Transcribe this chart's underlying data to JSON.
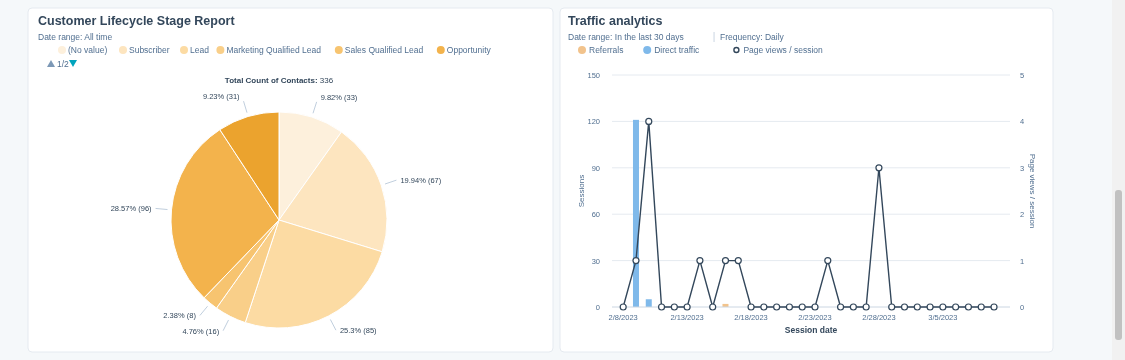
{
  "chart_data": [
    {
      "type": "pie",
      "title": "Customer Lifecycle Stage Report",
      "subtitle": "Date range: All time",
      "annotations": [
        "Total Count of Contacts: 336",
        "1/2"
      ],
      "legend": "top",
      "categories": [
        "(No value)",
        "Subscriber",
        "Lead",
        "Marketing Qualified Lead",
        "Sales Qualified Lead",
        "Opportunity",
        null
      ],
      "values": [
        33,
        67,
        85,
        16,
        8,
        96,
        31
      ],
      "value_labels": [
        "9.82% (33)",
        "19.94% (67)",
        "25.3% (85)",
        "4.76% (16)",
        "2.38% (8)",
        "28.57% (96)",
        "9.23% (31)"
      ],
      "colors": [
        "#fdf0dc",
        "#fde5bf",
        "#fcdba3",
        "#f9cf89",
        "#f7c470",
        "#f3b34c",
        "#eba32e"
      ]
    },
    {
      "type": "bar",
      "title": "Traffic analytics",
      "subtitle": "Date range: In the last 30 days",
      "annotations": [
        "Frequency: Daily"
      ],
      "legend": "top left",
      "stacked": true,
      "grid": "y",
      "marker": "circle",
      "line_style": "solid",
      "xlabel": "Session date",
      "ylabel": "Sessions",
      "y2label": "Page views / session",
      "x": [
        "2023-02-08",
        "2023-02-09",
        "2023-02-10",
        "2023-02-11",
        "2023-02-12",
        "2023-02-13",
        "2023-02-14",
        "2023-02-15",
        "2023-02-16",
        "2023-02-17",
        "2023-02-18",
        "2023-02-19",
        "2023-02-20",
        "2023-02-21",
        "2023-02-22",
        "2023-02-23",
        "2023-02-24",
        "2023-02-25",
        "2023-02-26",
        "2023-02-27",
        "2023-02-28",
        "2023-03-01",
        "2023-03-02",
        "2023-03-03",
        "2023-03-04",
        "2023-03-05",
        "2023-03-06",
        "2023-03-07",
        "2023-03-08",
        "2023-03-09"
      ],
      "xlim": [
        "2023-02-07T03:00",
        "2023-03-10T06:00"
      ],
      "xticks": [
        {
          "value": "2023-02-08",
          "label": "2/8/2023"
        },
        {
          "value": "2023-02-13",
          "label": "2/13/2023"
        },
        {
          "value": "2023-02-18",
          "label": "2/18/2023"
        },
        {
          "value": "2023-02-23",
          "label": "2/23/2023"
        },
        {
          "value": "2023-02-28",
          "label": "2/28/2023"
        },
        {
          "value": "2023-03-05",
          "label": "3/5/2023"
        }
      ],
      "ylim": [
        0,
        150
      ],
      "yticks": [
        0,
        30,
        60,
        90,
        120,
        150
      ],
      "y2lim": [
        0,
        5
      ],
      "y2ticks": [
        0,
        1,
        2,
        3,
        4,
        5
      ],
      "series": [
        {
          "name": "Referrals",
          "type": "bar",
          "color": "#f2c38c",
          "values": [
            0,
            0,
            0,
            0,
            0,
            0,
            0,
            0,
            2,
            0,
            0,
            0,
            0,
            0,
            0,
            0,
            0,
            0,
            0,
            0,
            0,
            0,
            0,
            0,
            0,
            0,
            0,
            0,
            0,
            0
          ]
        },
        {
          "name": "Direct traffic",
          "type": "bar",
          "color": "#7fb9ea",
          "values": [
            0,
            121,
            5,
            0,
            0,
            0,
            0,
            0,
            0,
            0,
            0,
            0,
            0,
            0,
            0,
            0,
            0,
            0,
            0,
            0,
            0,
            0,
            0,
            0,
            0,
            0,
            0,
            0,
            0,
            0
          ]
        },
        {
          "name": "Page views / session",
          "type": "line",
          "axis": "y2",
          "color": "#33475b",
          "values": [
            0,
            1,
            4,
            0,
            0,
            0,
            1,
            0,
            1,
            1,
            0,
            0,
            0,
            0,
            0,
            0,
            1,
            0,
            0,
            0,
            3,
            0,
            0,
            0,
            0,
            0,
            0,
            0,
            0,
            0
          ]
        }
      ]
    }
  ]
}
